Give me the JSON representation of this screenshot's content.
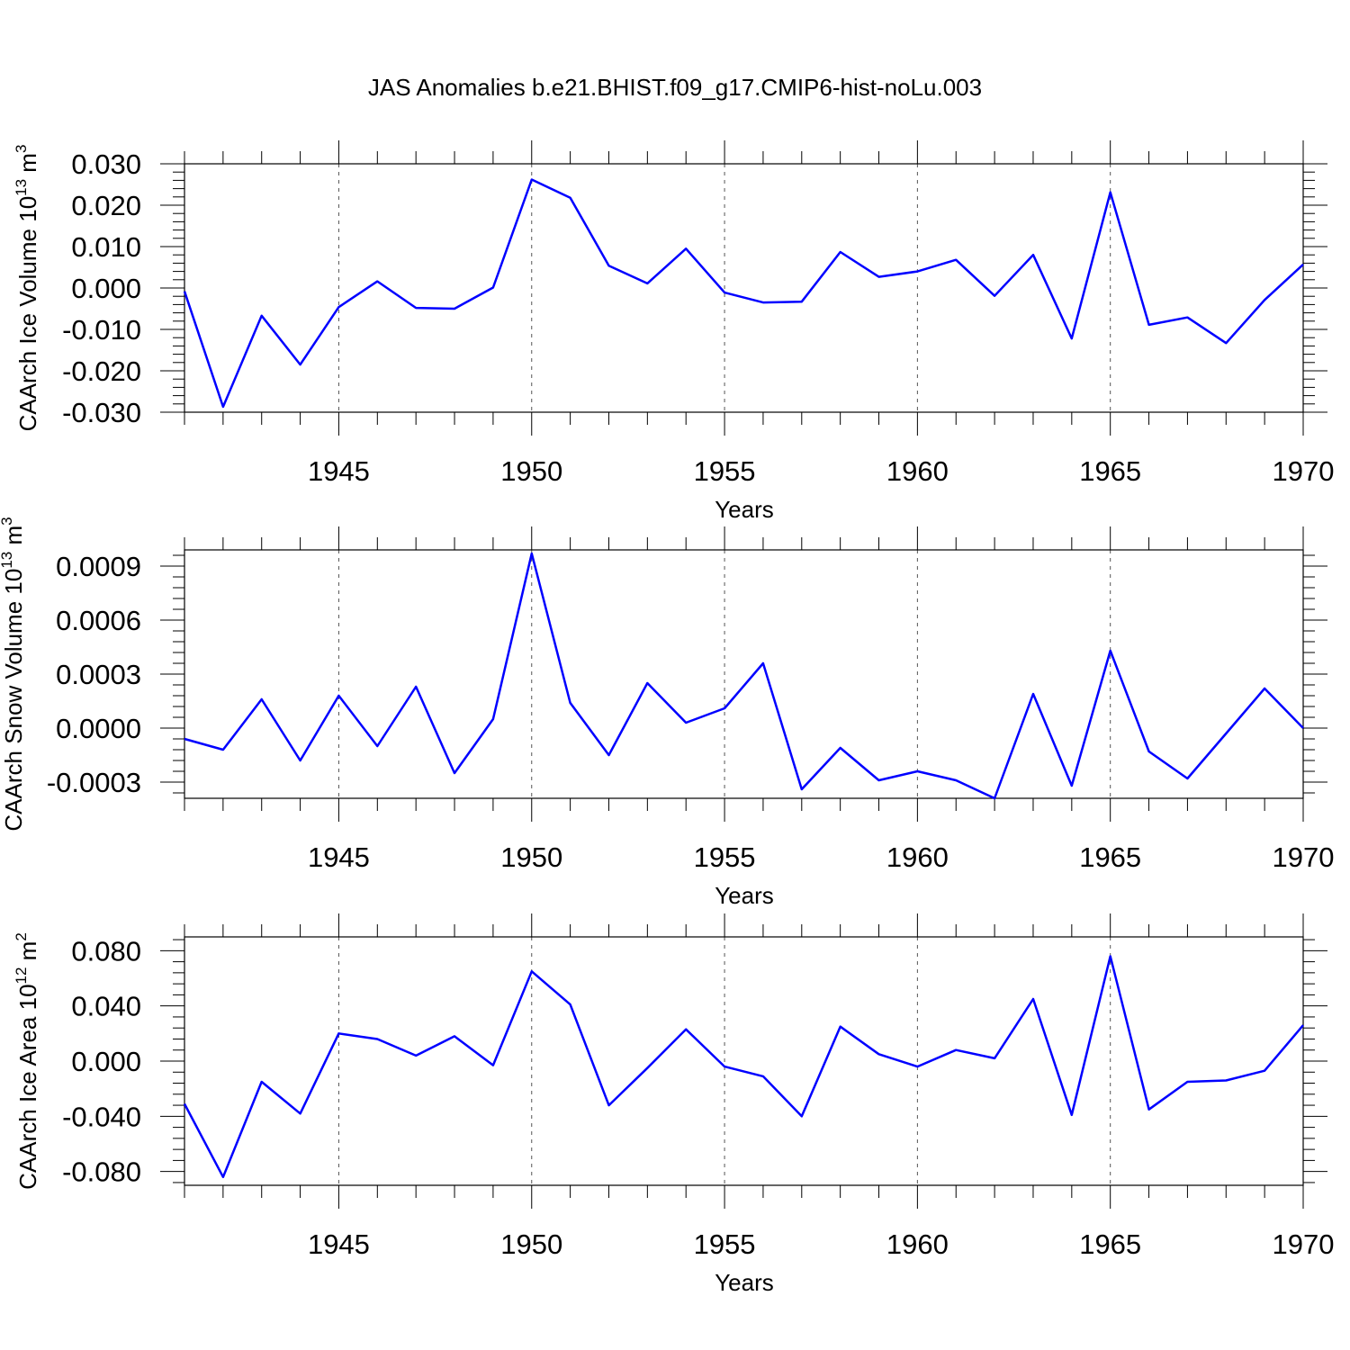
{
  "title": "JAS Anomalies b.e21.BHIST.f09_g17.CMIP6-hist-noLu.003",
  "line_color": "#0000ff",
  "chart_data": [
    {
      "type": "line",
      "ylabel": "CAArch Ice Volume 10",
      "ylabel_exp": "13",
      "ylabel_unit": "m",
      "ylabel_unit_exp": "3",
      "xlabel": "Years",
      "xlim": [
        1941,
        1970
      ],
      "ylim": [
        -0.03,
        0.03
      ],
      "yticks": [
        "0.030",
        "0.020",
        "0.010",
        "0.000",
        "-0.010",
        "-0.020",
        "-0.030"
      ],
      "ytick_values": [
        0.03,
        0.02,
        0.01,
        0.0,
        -0.01,
        -0.02,
        -0.03
      ],
      "xtick_labels": [
        "1945",
        "1950",
        "1955",
        "1960",
        "1965",
        "1970"
      ],
      "xtick_values": [
        1945,
        1950,
        1955,
        1960,
        1965,
        1970
      ],
      "grid": "dashed vertical at major x ticks",
      "x": [
        1941,
        1942,
        1943,
        1944,
        1945,
        1946,
        1947,
        1948,
        1949,
        1950,
        1951,
        1952,
        1953,
        1954,
        1955,
        1956,
        1957,
        1958,
        1959,
        1960,
        1961,
        1962,
        1963,
        1964,
        1965,
        1966,
        1967,
        1968,
        1969,
        1970
      ],
      "values": [
        -0.0008,
        -0.0287,
        -0.0067,
        -0.0185,
        -0.0046,
        0.0016,
        -0.0048,
        -0.005,
        0.0001,
        0.0262,
        0.0218,
        0.0054,
        0.0011,
        0.0095,
        -0.0011,
        -0.0035,
        -0.0033,
        0.0087,
        0.0027,
        0.004,
        0.0068,
        -0.0019,
        0.008,
        -0.0122,
        0.0231,
        -0.0089,
        -0.0071,
        -0.0133,
        -0.0029,
        0.0057
      ]
    },
    {
      "type": "line",
      "ylabel": "CAArch Snow Volume 10",
      "ylabel_exp": "13",
      "ylabel_unit": "m",
      "ylabel_unit_exp": "3",
      "xlabel": "Years",
      "xlim": [
        1941,
        1970
      ],
      "ylim": [
        -0.00039,
        0.00099
      ],
      "yticks": [
        "0.0009",
        "0.0006",
        "0.0003",
        "0.0000",
        "-0.0003"
      ],
      "ytick_values": [
        0.0009,
        0.0006,
        0.0003,
        0.0,
        -0.0003
      ],
      "xtick_labels": [
        "1945",
        "1950",
        "1955",
        "1960",
        "1965",
        "1970"
      ],
      "xtick_values": [
        1945,
        1950,
        1955,
        1960,
        1965,
        1970
      ],
      "grid": "dashed vertical at major x ticks",
      "x": [
        1941,
        1942,
        1943,
        1944,
        1945,
        1946,
        1947,
        1948,
        1949,
        1950,
        1951,
        1952,
        1953,
        1954,
        1955,
        1956,
        1957,
        1958,
        1959,
        1960,
        1961,
        1962,
        1963,
        1964,
        1965,
        1966,
        1967,
        1968,
        1969,
        1970
      ],
      "values": [
        -6e-05,
        -0.00012,
        0.00016,
        -0.00018,
        0.00018,
        -0.0001,
        0.00023,
        -0.00025,
        5e-05,
        0.00097,
        0.00014,
        -0.00015,
        0.00025,
        3e-05,
        0.00011,
        0.00036,
        -0.00034,
        -0.00011,
        -0.00029,
        -0.00024,
        -0.00029,
        -0.00039,
        0.00019,
        -0.00032,
        0.00043,
        -0.00013,
        -0.00028,
        -3e-05,
        0.00022,
        0.0
      ]
    },
    {
      "type": "line",
      "ylabel": "CAArch Ice Area 10",
      "ylabel_exp": "12",
      "ylabel_unit": "m",
      "ylabel_unit_exp": "2",
      "xlabel": "Years",
      "xlim": [
        1941,
        1970
      ],
      "ylim": [
        -0.09,
        0.09
      ],
      "yticks": [
        "0.080",
        "0.040",
        "0.000",
        "-0.040",
        "-0.080"
      ],
      "ytick_values": [
        0.08,
        0.04,
        0.0,
        -0.04,
        -0.08
      ],
      "xtick_labels": [
        "1945",
        "1950",
        "1955",
        "1960",
        "1965",
        "1970"
      ],
      "xtick_values": [
        1945,
        1950,
        1955,
        1960,
        1965,
        1970
      ],
      "grid": "dashed vertical at major x ticks",
      "x": [
        1941,
        1942,
        1943,
        1944,
        1945,
        1946,
        1947,
        1948,
        1949,
        1950,
        1951,
        1952,
        1953,
        1954,
        1955,
        1956,
        1957,
        1958,
        1959,
        1960,
        1961,
        1962,
        1963,
        1964,
        1965,
        1966,
        1967,
        1968,
        1969,
        1970
      ],
      "values": [
        -0.031,
        -0.084,
        -0.015,
        -0.038,
        0.02,
        0.016,
        0.004,
        0.018,
        -0.003,
        0.065,
        0.041,
        -0.032,
        -0.005,
        0.023,
        -0.004,
        -0.011,
        -0.04,
        0.025,
        0.005,
        -0.004,
        0.008,
        0.002,
        0.045,
        -0.039,
        0.076,
        -0.035,
        -0.015,
        -0.014,
        -0.007,
        0.026
      ]
    }
  ]
}
